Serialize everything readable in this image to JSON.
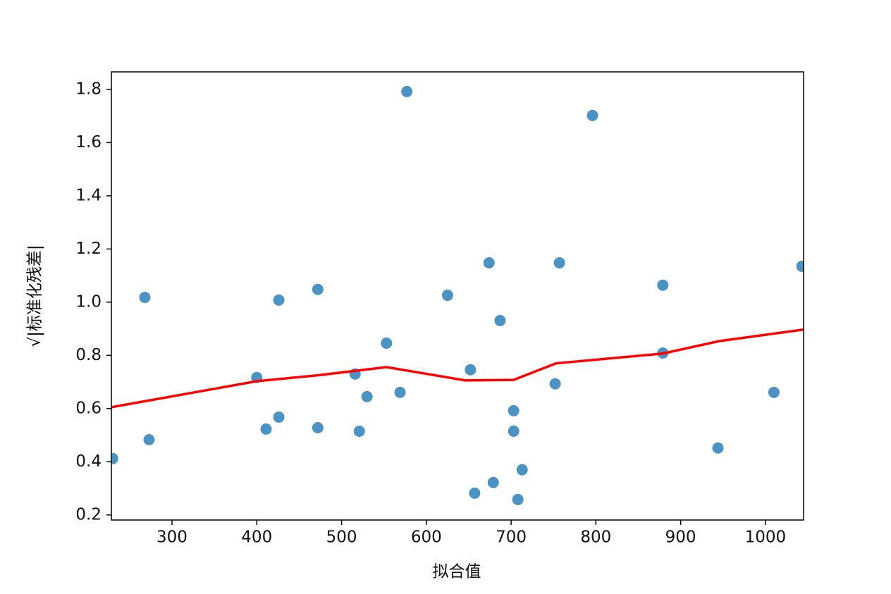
{
  "chart_data": {
    "type": "scatter",
    "xlabel": "拟合值",
    "ylabel": "√|标准化残差|",
    "xlim": [
      228.5,
      1045
    ],
    "ylim": [
      0.181,
      1.866
    ],
    "xticks": [
      300,
      400,
      500,
      600,
      700,
      800,
      900,
      1000
    ],
    "yticks": [
      0.2,
      0.4,
      0.6,
      0.8,
      {
        "value": 1,
        "label": "1.0"
      },
      1.2,
      1.4,
      1.6,
      1.8
    ],
    "series": [
      {
        "type": "scatter",
        "color": "#1f77b4",
        "x": [
          230,
          268,
          273,
          400,
          411,
          426,
          426,
          472,
          472,
          516,
          521,
          530,
          553,
          569,
          577,
          625,
          652,
          657,
          674,
          679,
          687,
          703,
          703,
          708,
          713,
          752,
          757,
          796,
          879,
          879,
          944,
          1010,
          1043
        ],
        "values": [
          0.412,
          1.018,
          0.483,
          0.717,
          0.523,
          0.568,
          1.008,
          1.048,
          0.528,
          0.73,
          0.515,
          0.645,
          0.846,
          0.661,
          1.792,
          1.026,
          0.746,
          0.282,
          1.148,
          0.322,
          0.931,
          0.592,
          0.515,
          0.258,
          0.37,
          0.693,
          1.148,
          1.702,
          1.064,
          0.809,
          0.452,
          0.661,
          1.135
        ]
      },
      {
        "type": "line",
        "color": "#ff0000",
        "x": [
          228.5,
          400,
          472,
          553,
          646,
          703,
          753,
          879,
          946,
          1045
        ],
        "values": [
          0.605,
          0.703,
          0.725,
          0.756,
          0.706,
          0.708,
          0.77,
          0.807,
          0.854,
          0.897
        ]
      }
    ]
  }
}
